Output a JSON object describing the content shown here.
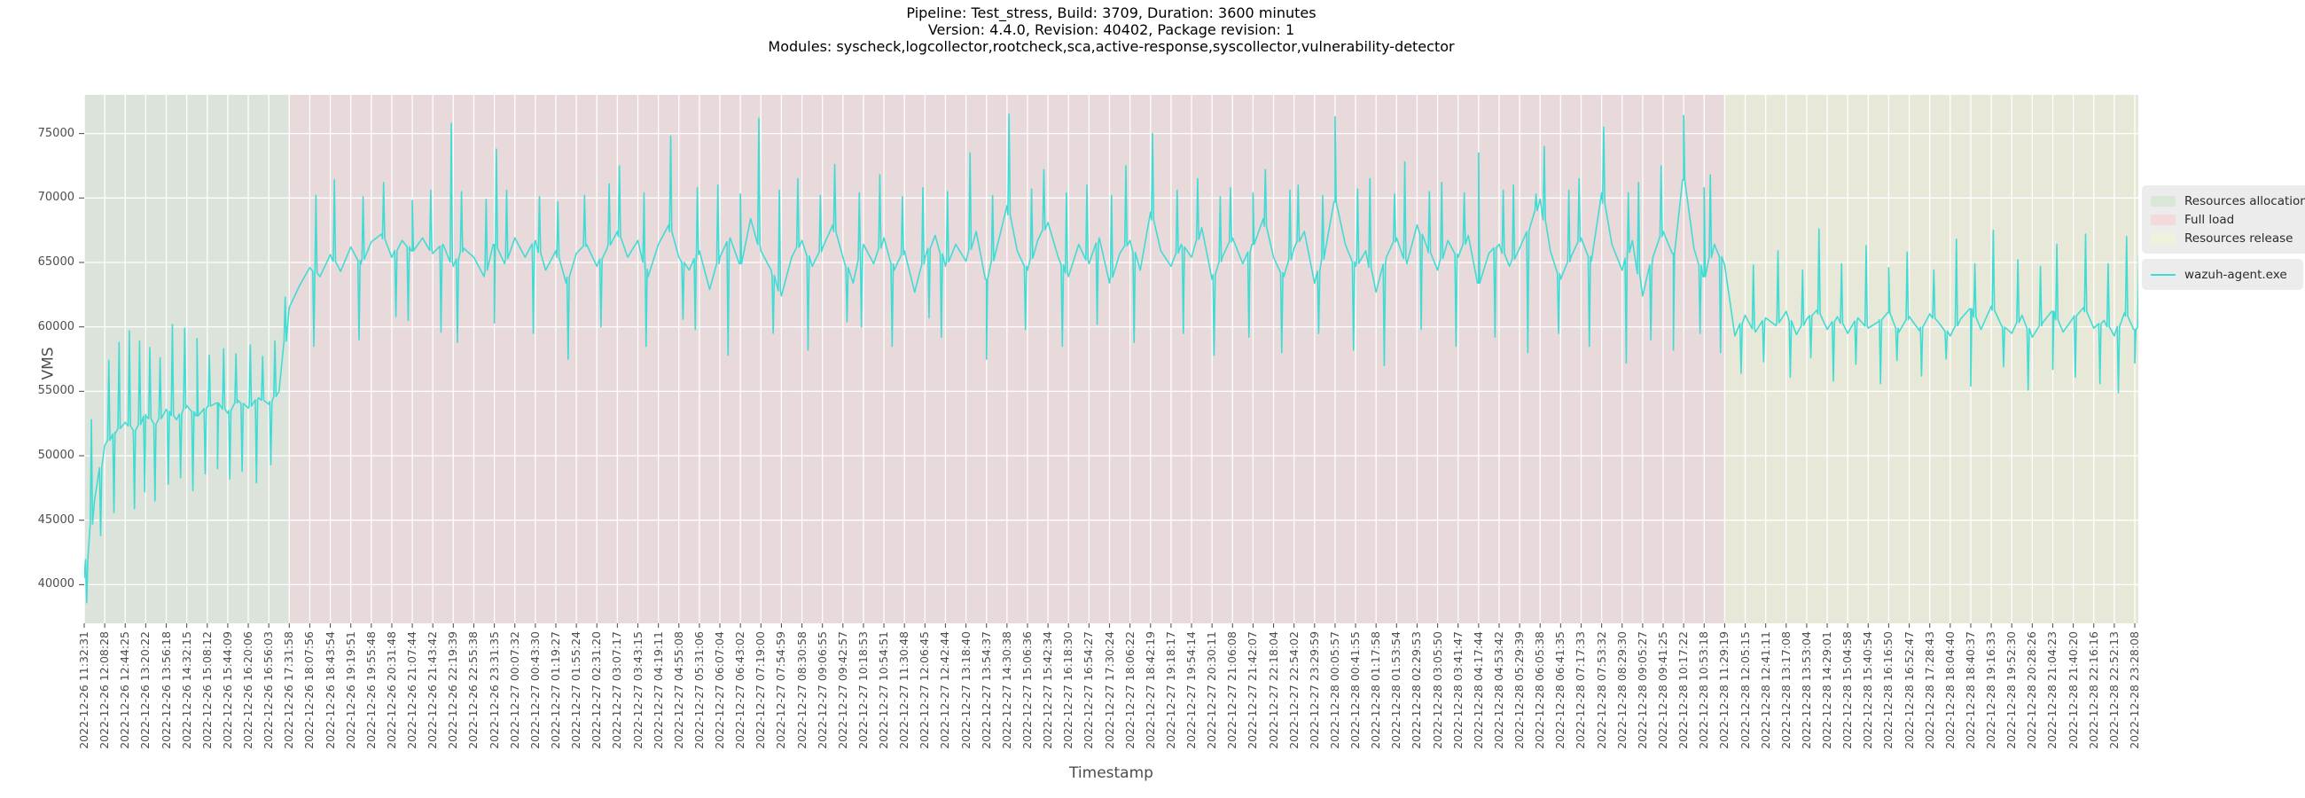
{
  "chart_data": {
    "type": "line",
    "title_lines": [
      "Pipeline: Test_stress, Build: 3709, Duration: 3600 minutes",
      "Version: 4.4.0, Revision: 40402, Package revision: 1",
      "Modules: syscheck,logcollector,rootcheck,sca,active-response,syscollector,vulnerability-detector"
    ],
    "xlabel": "Timestamp",
    "ylabel": "VMS",
    "ylim": [
      37000,
      78000
    ],
    "yticks": [
      40000,
      45000,
      50000,
      55000,
      60000,
      65000,
      70000,
      75000
    ],
    "grid": true,
    "legend_position": "outside-right",
    "phases": [
      {
        "label": "Resources allocation",
        "color": "#dce3da",
        "swatch_color": "#d8e7d8",
        "from_tick": 0,
        "to_tick": 10
      },
      {
        "label": "Full load",
        "color": "#e8d9da",
        "swatch_color": "#f3dadd",
        "from_tick": 10,
        "to_tick": 80
      },
      {
        "label": "Resources release",
        "color": "#e8e8d9",
        "swatch_color": "#f1f2dc",
        "from_tick": 80,
        "to_tick": 100.17
      }
    ],
    "x_tick_labels": [
      "2022-12-26 11:32:31",
      "2022-12-26 12:08:28",
      "2022-12-26 12:44:25",
      "2022-12-26 13:20:22",
      "2022-12-26 13:56:18",
      "2022-12-26 14:32:15",
      "2022-12-26 15:08:12",
      "2022-12-26 15:44:09",
      "2022-12-26 16:20:06",
      "2022-12-26 16:56:03",
      "2022-12-26 17:31:58",
      "2022-12-26 18:07:56",
      "2022-12-26 18:43:54",
      "2022-12-26 19:19:51",
      "2022-12-26 19:55:48",
      "2022-12-26 20:31:48",
      "2022-12-26 21:07:44",
      "2022-12-26 21:43:42",
      "2022-12-26 22:19:39",
      "2022-12-26 22:55:38",
      "2022-12-26 23:31:35",
      "2022-12-27 00:07:32",
      "2022-12-27 00:43:30",
      "2022-12-27 01:19:27",
      "2022-12-27 01:55:24",
      "2022-12-27 02:31:20",
      "2022-12-27 03:07:17",
      "2022-12-27 03:43:15",
      "2022-12-27 04:19:11",
      "2022-12-27 04:55:08",
      "2022-12-27 05:31:06",
      "2022-12-27 06:07:04",
      "2022-12-27 06:43:02",
      "2022-12-27 07:19:00",
      "2022-12-27 07:54:59",
      "2022-12-27 08:30:58",
      "2022-12-27 09:06:55",
      "2022-12-27 09:42:57",
      "2022-12-27 10:18:53",
      "2022-12-27 10:54:51",
      "2022-12-27 11:30:48",
      "2022-12-27 12:06:45",
      "2022-12-27 12:42:44",
      "2022-12-27 13:18:40",
      "2022-12-27 13:54:37",
      "2022-12-27 14:30:38",
      "2022-12-27 15:06:36",
      "2022-12-27 15:42:34",
      "2022-12-27 16:18:30",
      "2022-12-27 16:54:27",
      "2022-12-27 17:30:24",
      "2022-12-27 18:06:22",
      "2022-12-27 18:42:19",
      "2022-12-27 19:18:17",
      "2022-12-27 19:54:14",
      "2022-12-27 20:30:11",
      "2022-12-27 21:06:08",
      "2022-12-27 21:42:07",
      "2022-12-27 22:18:04",
      "2022-12-27 22:54:02",
      "2022-12-27 23:29:59",
      "2022-12-28 00:05:57",
      "2022-12-28 00:41:55",
      "2022-12-28 01:17:58",
      "2022-12-28 01:53:54",
      "2022-12-28 02:29:53",
      "2022-12-28 03:05:50",
      "2022-12-28 03:41:47",
      "2022-12-28 04:17:44",
      "2022-12-28 04:53:42",
      "2022-12-28 05:29:39",
      "2022-12-28 06:05:38",
      "2022-12-28 06:41:35",
      "2022-12-28 07:17:33",
      "2022-12-28 07:53:32",
      "2022-12-28 08:29:30",
      "2022-12-28 09:05:27",
      "2022-12-28 09:41:25",
      "2022-12-28 10:17:22",
      "2022-12-28 10:53:18",
      "2022-12-28 11:29:19",
      "2022-12-28 12:05:15",
      "2022-12-28 12:41:11",
      "2022-12-28 13:17:08",
      "2022-12-28 13:53:04",
      "2022-12-28 14:29:01",
      "2022-12-28 15:04:58",
      "2022-12-28 15:40:54",
      "2022-12-28 16:16:50",
      "2022-12-28 16:52:47",
      "2022-12-28 17:28:43",
      "2022-12-28 18:04:40",
      "2022-12-28 18:40:37",
      "2022-12-28 19:16:33",
      "2022-12-28 19:52:30",
      "2022-12-28 20:28:26",
      "2022-12-28 21:04:23",
      "2022-12-28 21:40:20",
      "2022-12-28 22:16:16",
      "2022-12-28 22:52:13",
      "2022-12-28 23:28:08"
    ],
    "series": [
      {
        "name": "wazuh-agent.exe",
        "color": "#40dcd4",
        "base_step_ticks": 0.5,
        "base": [
          40500,
          46500,
          50800,
          51800,
          52600,
          51900,
          53200,
          52400,
          53600,
          52800,
          53900,
          53100,
          53800,
          54100,
          53300,
          54300,
          53700,
          54500,
          54000,
          55000,
          61500,
          63200,
          64600,
          63900,
          65600,
          64300,
          66200,
          64900,
          66600,
          67200,
          65400,
          66700,
          65900,
          66900,
          65700,
          66400,
          64700,
          66100,
          65400,
          63900,
          66400,
          64900,
          66900,
          65400,
          66700,
          64400,
          65900,
          63400,
          65700,
          66400,
          64700,
          66100,
          67400,
          65400,
          66700,
          63900,
          66400,
          67900,
          65400,
          64400,
          65900,
          62900,
          65400,
          66900,
          64900,
          68400,
          65900,
          64400,
          62400,
          65400,
          66700,
          64700,
          66100,
          67900,
          65400,
          63400,
          66400,
          64900,
          66900,
          64400,
          65900,
          62700,
          65400,
          67100,
          64700,
          66400,
          65100,
          67400,
          63700,
          66100,
          69400,
          65900,
          64400,
          66700,
          68100,
          65400,
          63900,
          66400,
          64900,
          66900,
          63400,
          65700,
          66700,
          64400,
          68900,
          65900,
          64700,
          66400,
          65400,
          67700,
          63700,
          65400,
          66900,
          64900,
          66400,
          68400,
          65400,
          63900,
          66100,
          67400,
          63400,
          65700,
          69700,
          66400,
          64700,
          65900,
          62700,
          65400,
          66900,
          64900,
          67900,
          66100,
          64400,
          66700,
          65400,
          67100,
          63400,
          65700,
          66400,
          64700,
          66100,
          67700,
          69900,
          65900,
          63700,
          65400,
          66900,
          65100,
          70400,
          66400,
          64400,
          66700,
          62400,
          65400,
          67400,
          65700,
          71400,
          66100,
          63900,
          66400,
          64800,
          59300,
          60900,
          59600,
          60700,
          60100,
          61200,
          59400,
          60600,
          61300,
          59800,
          60800,
          59500,
          60700,
          59900,
          60400,
          61100,
          59600,
          60800,
          59700,
          61000,
          60200,
          59300,
          60600,
          61400,
          59800,
          61600,
          60100,
          59500,
          60900,
          59200,
          60300,
          61200,
          59600,
          60700,
          61500,
          59900,
          60500,
          59300,
          61100,
          59800,
          60300
        ],
        "spikes_up": [
          [
            0.35,
            52800
          ],
          [
            1.2,
            57400
          ],
          [
            1.7,
            58800
          ],
          [
            2.2,
            59700
          ],
          [
            2.7,
            58900
          ],
          [
            3.2,
            58400
          ],
          [
            3.7,
            57600
          ],
          [
            4.3,
            60200
          ],
          [
            4.9,
            59900
          ],
          [
            5.5,
            59100
          ],
          [
            6.1,
            57800
          ],
          [
            6.8,
            58300
          ],
          [
            7.4,
            57900
          ],
          [
            8.1,
            58600
          ],
          [
            8.7,
            57700
          ],
          [
            9.3,
            58900
          ],
          [
            9.8,
            62300
          ],
          [
            11.3,
            70200
          ],
          [
            12.2,
            71400
          ],
          [
            13.6,
            70100
          ],
          [
            14.6,
            71200
          ],
          [
            16.0,
            69800
          ],
          [
            16.9,
            70600
          ],
          [
            17.9,
            75800
          ],
          [
            18.4,
            70500
          ],
          [
            19.6,
            69900
          ],
          [
            20.1,
            73800
          ],
          [
            20.6,
            70600
          ],
          [
            22.2,
            70100
          ],
          [
            23.1,
            69700
          ],
          [
            24.4,
            70200
          ],
          [
            25.6,
            71100
          ],
          [
            26.1,
            72500
          ],
          [
            27.3,
            70400
          ],
          [
            28.6,
            74800
          ],
          [
            29.9,
            70800
          ],
          [
            30.9,
            71000
          ],
          [
            32.0,
            70300
          ],
          [
            32.9,
            76200
          ],
          [
            33.9,
            70600
          ],
          [
            34.8,
            71500
          ],
          [
            35.9,
            70200
          ],
          [
            36.6,
            72600
          ],
          [
            37.8,
            70400
          ],
          [
            38.8,
            71800
          ],
          [
            39.9,
            70100
          ],
          [
            40.9,
            70800
          ],
          [
            42.1,
            70500
          ],
          [
            43.2,
            73500
          ],
          [
            44.3,
            70200
          ],
          [
            45.1,
            76500
          ],
          [
            46.2,
            70700
          ],
          [
            46.8,
            72200
          ],
          [
            47.9,
            70400
          ],
          [
            48.9,
            71000
          ],
          [
            50.1,
            70200
          ],
          [
            50.8,
            72500
          ],
          [
            52.1,
            75000
          ],
          [
            53.3,
            70600
          ],
          [
            54.3,
            71500
          ],
          [
            55.4,
            70100
          ],
          [
            55.9,
            70800
          ],
          [
            57.0,
            70400
          ],
          [
            57.6,
            72200
          ],
          [
            58.8,
            70600
          ],
          [
            59.2,
            71000
          ],
          [
            60.4,
            70200
          ],
          [
            61.0,
            76300
          ],
          [
            62.1,
            70700
          ],
          [
            62.7,
            71500
          ],
          [
            63.9,
            70300
          ],
          [
            64.4,
            72800
          ],
          [
            65.6,
            70500
          ],
          [
            66.2,
            71200
          ],
          [
            67.3,
            70400
          ],
          [
            68.0,
            73500
          ],
          [
            69.2,
            70600
          ],
          [
            69.7,
            71000
          ],
          [
            70.8,
            70300
          ],
          [
            71.2,
            74000
          ],
          [
            72.4,
            70600
          ],
          [
            72.9,
            71500
          ],
          [
            74.1,
            75500
          ],
          [
            75.3,
            70400
          ],
          [
            75.8,
            71200
          ],
          [
            76.9,
            72500
          ],
          [
            78.0,
            76400
          ],
          [
            79.0,
            70800
          ],
          [
            79.3,
            71800
          ],
          [
            81.4,
            64800
          ],
          [
            82.6,
            65900
          ],
          [
            83.8,
            64400
          ],
          [
            84.6,
            67600
          ],
          [
            85.7,
            64900
          ],
          [
            86.9,
            66300
          ],
          [
            88.0,
            64600
          ],
          [
            88.9,
            65800
          ],
          [
            90.2,
            64400
          ],
          [
            91.3,
            66800
          ],
          [
            92.2,
            64900
          ],
          [
            93.1,
            67500
          ],
          [
            94.3,
            65200
          ],
          [
            95.4,
            64700
          ],
          [
            96.2,
            66400
          ],
          [
            97.6,
            67200
          ],
          [
            98.7,
            64900
          ],
          [
            99.6,
            67000
          ],
          [
            100.2,
            65600
          ]
        ],
        "spikes_down": [
          [
            0.12,
            38600
          ],
          [
            0.8,
            43800
          ],
          [
            1.45,
            45600
          ],
          [
            2.45,
            45900
          ],
          [
            2.95,
            47200
          ],
          [
            3.45,
            46500
          ],
          [
            4.1,
            47800
          ],
          [
            4.7,
            48300
          ],
          [
            5.3,
            47300
          ],
          [
            5.9,
            48600
          ],
          [
            6.5,
            49000
          ],
          [
            7.1,
            48200
          ],
          [
            7.7,
            48800
          ],
          [
            8.4,
            47900
          ],
          [
            9.1,
            49300
          ],
          [
            11.2,
            58500
          ],
          [
            13.4,
            59000
          ],
          [
            15.2,
            60800
          ],
          [
            15.8,
            60500
          ],
          [
            17.4,
            59600
          ],
          [
            18.2,
            58800
          ],
          [
            20.0,
            60300
          ],
          [
            21.9,
            59500
          ],
          [
            23.6,
            57500
          ],
          [
            25.2,
            60000
          ],
          [
            27.4,
            58500
          ],
          [
            29.2,
            60600
          ],
          [
            29.8,
            59800
          ],
          [
            31.4,
            57800
          ],
          [
            33.6,
            59500
          ],
          [
            35.3,
            58200
          ],
          [
            37.2,
            60400
          ],
          [
            37.9,
            60000
          ],
          [
            39.4,
            58500
          ],
          [
            41.2,
            60700
          ],
          [
            41.8,
            59200
          ],
          [
            44.0,
            57500
          ],
          [
            45.9,
            59800
          ],
          [
            47.7,
            58500
          ],
          [
            49.4,
            60200
          ],
          [
            51.2,
            58800
          ],
          [
            53.6,
            59500
          ],
          [
            55.1,
            57800
          ],
          [
            56.8,
            59200
          ],
          [
            58.4,
            58000
          ],
          [
            60.2,
            59500
          ],
          [
            61.9,
            58200
          ],
          [
            63.4,
            57000
          ],
          [
            65.2,
            59800
          ],
          [
            66.9,
            58500
          ],
          [
            68.8,
            59200
          ],
          [
            70.4,
            58000
          ],
          [
            71.9,
            59500
          ],
          [
            73.4,
            58500
          ],
          [
            75.2,
            57200
          ],
          [
            76.4,
            59000
          ],
          [
            77.5,
            58200
          ],
          [
            78.8,
            59500
          ],
          [
            79.8,
            58000
          ],
          [
            80.8,
            56400
          ],
          [
            81.9,
            57300
          ],
          [
            83.2,
            56100
          ],
          [
            84.2,
            57600
          ],
          [
            85.3,
            55800
          ],
          [
            86.4,
            57100
          ],
          [
            87.6,
            55600
          ],
          [
            88.4,
            57400
          ],
          [
            89.6,
            56200
          ],
          [
            90.8,
            57500
          ],
          [
            92.0,
            55400
          ],
          [
            93.6,
            56900
          ],
          [
            94.8,
            55100
          ],
          [
            96.0,
            56700
          ],
          [
            97.1,
            56100
          ],
          [
            98.3,
            55600
          ],
          [
            99.2,
            54900
          ],
          [
            100.0,
            57200
          ]
        ]
      }
    ]
  }
}
